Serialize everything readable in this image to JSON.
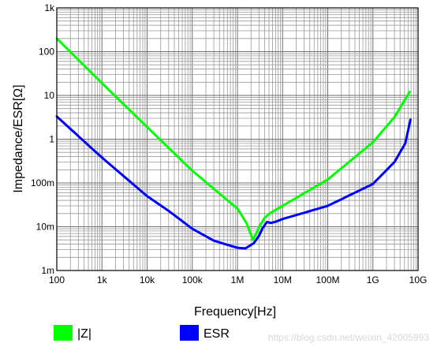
{
  "chart_data": {
    "type": "line",
    "title": "",
    "xlabel": "Frequency[Hz]",
    "ylabel": "Impedance/ESR[Ω]",
    "x_scale": "log",
    "y_scale": "log",
    "xlim": [
      100,
      10000000000
    ],
    "ylim": [
      0.001,
      1000
    ],
    "grid": true,
    "legend_position": "bottom",
    "x_ticks": [
      {
        "v": 100,
        "label": "100"
      },
      {
        "v": 1000,
        "label": "1k"
      },
      {
        "v": 10000,
        "label": "10k"
      },
      {
        "v": 100000,
        "label": "100k"
      },
      {
        "v": 1000000,
        "label": "1M"
      },
      {
        "v": 10000000,
        "label": "10M"
      },
      {
        "v": 100000000,
        "label": "100M"
      },
      {
        "v": 1000000000,
        "label": "1G"
      },
      {
        "v": 10000000000,
        "label": "10G"
      }
    ],
    "y_ticks": [
      {
        "v": 0.001,
        "label": "1m"
      },
      {
        "v": 0.01,
        "label": "10m"
      },
      {
        "v": 0.1,
        "label": "100m"
      },
      {
        "v": 1,
        "label": "1"
      },
      {
        "v": 10,
        "label": "10"
      },
      {
        "v": 100,
        "label": "100"
      },
      {
        "v": 1000,
        "label": "1k"
      }
    ],
    "series": [
      {
        "name": "|Z|",
        "color": "#00ff00",
        "points": [
          [
            100,
            200
          ],
          [
            1000,
            19
          ],
          [
            10000,
            1.9
          ],
          [
            100000,
            0.19
          ],
          [
            1000000,
            0.026
          ],
          [
            1600000,
            0.012
          ],
          [
            2200000,
            0.005
          ],
          [
            2600000,
            0.007
          ],
          [
            3200000,
            0.011
          ],
          [
            4000000,
            0.016
          ],
          [
            5500000,
            0.021
          ],
          [
            10000000,
            0.03
          ],
          [
            100000000,
            0.12
          ],
          [
            1000000000,
            0.85
          ],
          [
            3000000000,
            3.2
          ],
          [
            6500000000,
            12
          ]
        ]
      },
      {
        "name": "ESR",
        "color": "#0000ff",
        "points": [
          [
            100,
            3.3
          ],
          [
            1000,
            0.38
          ],
          [
            10000,
            0.05
          ],
          [
            30000,
            0.023
          ],
          [
            100000,
            0.009
          ],
          [
            300000,
            0.0048
          ],
          [
            1000000,
            0.0033
          ],
          [
            1500000,
            0.0032
          ],
          [
            2300000,
            0.0042
          ],
          [
            3000000,
            0.0062
          ],
          [
            3600000,
            0.0092
          ],
          [
            4500000,
            0.0128
          ],
          [
            5500000,
            0.0122
          ],
          [
            7000000,
            0.013
          ],
          [
            10000000,
            0.015
          ],
          [
            100000000,
            0.03
          ],
          [
            1000000000,
            0.095
          ],
          [
            3000000000,
            0.3
          ],
          [
            5200000000,
            0.8
          ],
          [
            6800000000,
            2.8
          ]
        ]
      }
    ]
  },
  "watermark": "https://blog.csdn.net/weixin_42005993"
}
